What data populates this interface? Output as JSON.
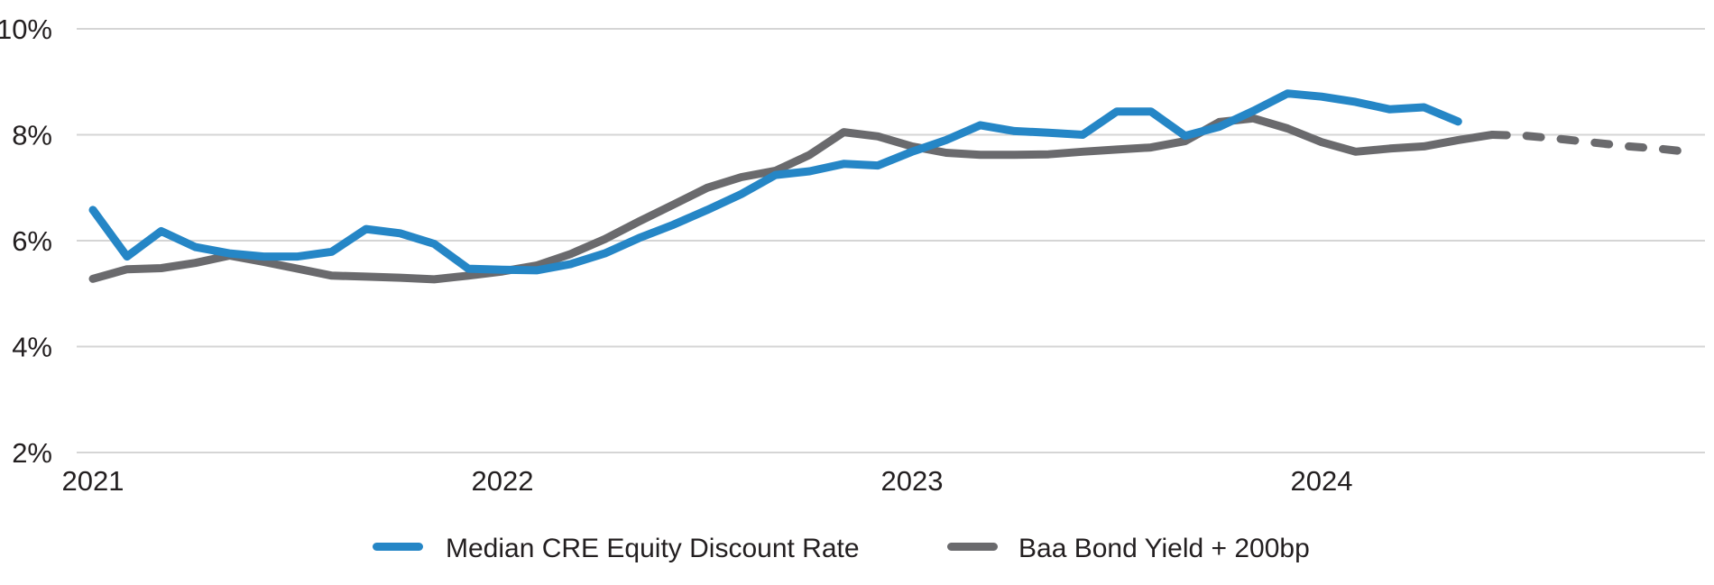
{
  "chart_data": {
    "type": "line",
    "x_axis": {
      "unit": "month",
      "start": "2021-01",
      "ticks": [
        {
          "label": "2021",
          "month_index": 0
        },
        {
          "label": "2022",
          "month_index": 12
        },
        {
          "label": "2023",
          "month_index": 24
        },
        {
          "label": "2024",
          "month_index": 36
        }
      ]
    },
    "y_axis": {
      "range": [
        2,
        10
      ],
      "ticks": [
        {
          "label": "10%",
          "value": 10
        },
        {
          "label": "8%",
          "value": 8
        },
        {
          "label": "6%",
          "value": 6
        },
        {
          "label": "4%",
          "value": 4
        },
        {
          "label": "2%",
          "value": 2
        }
      ]
    },
    "grid": "horizontal",
    "legend_position": "bottom",
    "series": [
      {
        "name": "Median CRE Equity Discount Rate",
        "color": "#2586C6",
        "line_style": "solid",
        "start_month_index": 0,
        "values": [
          6.58,
          5.7,
          6.18,
          5.88,
          5.76,
          5.7,
          5.7,
          5.79,
          6.22,
          6.14,
          5.94,
          5.47,
          5.45,
          5.44,
          5.56,
          5.76,
          6.05,
          6.3,
          6.58,
          6.88,
          7.24,
          7.31,
          7.45,
          7.42,
          7.68,
          7.9,
          8.18,
          8.07,
          8.04,
          8.0,
          8.44,
          8.44,
          7.98,
          8.15,
          8.45,
          8.78,
          8.72,
          8.62,
          8.48,
          8.52,
          8.25
        ]
      },
      {
        "name": "Baa Bond Yield + 200bp",
        "color": "#6A6A6D",
        "line_style": "solid",
        "start_month_index": 0,
        "values": [
          5.28,
          5.46,
          5.48,
          5.58,
          5.72,
          5.6,
          5.47,
          5.34,
          5.32,
          5.3,
          5.27,
          5.34,
          5.42,
          5.53,
          5.75,
          6.03,
          6.36,
          6.68,
          7.0,
          7.2,
          7.32,
          7.62,
          8.05,
          7.97,
          7.78,
          7.66,
          7.62,
          7.62,
          7.63,
          7.68,
          7.72,
          7.76,
          7.88,
          8.24,
          8.31,
          8.12,
          7.86,
          7.68,
          7.74,
          7.78,
          7.9,
          8.0
        ]
      },
      {
        "name": "Baa Bond Yield + 200bp",
        "color": "#6A6A6D",
        "line_style": "dashed",
        "start_month_index": 41,
        "values": [
          8.0,
          7.98,
          7.92,
          7.85,
          7.78,
          7.73,
          7.66
        ]
      }
    ],
    "legend": [
      {
        "label": "Median CRE Equity Discount Rate",
        "color": "#2586C6"
      },
      {
        "label": "Baa Bond Yield + 200bp",
        "color": "#6A6A6D"
      }
    ]
  },
  "colors": {
    "background": "#FFFFFF",
    "gridline": "#D5D5D5",
    "text": "#231F20",
    "blue": "#2586C6",
    "gray": "#6A6A6D"
  }
}
